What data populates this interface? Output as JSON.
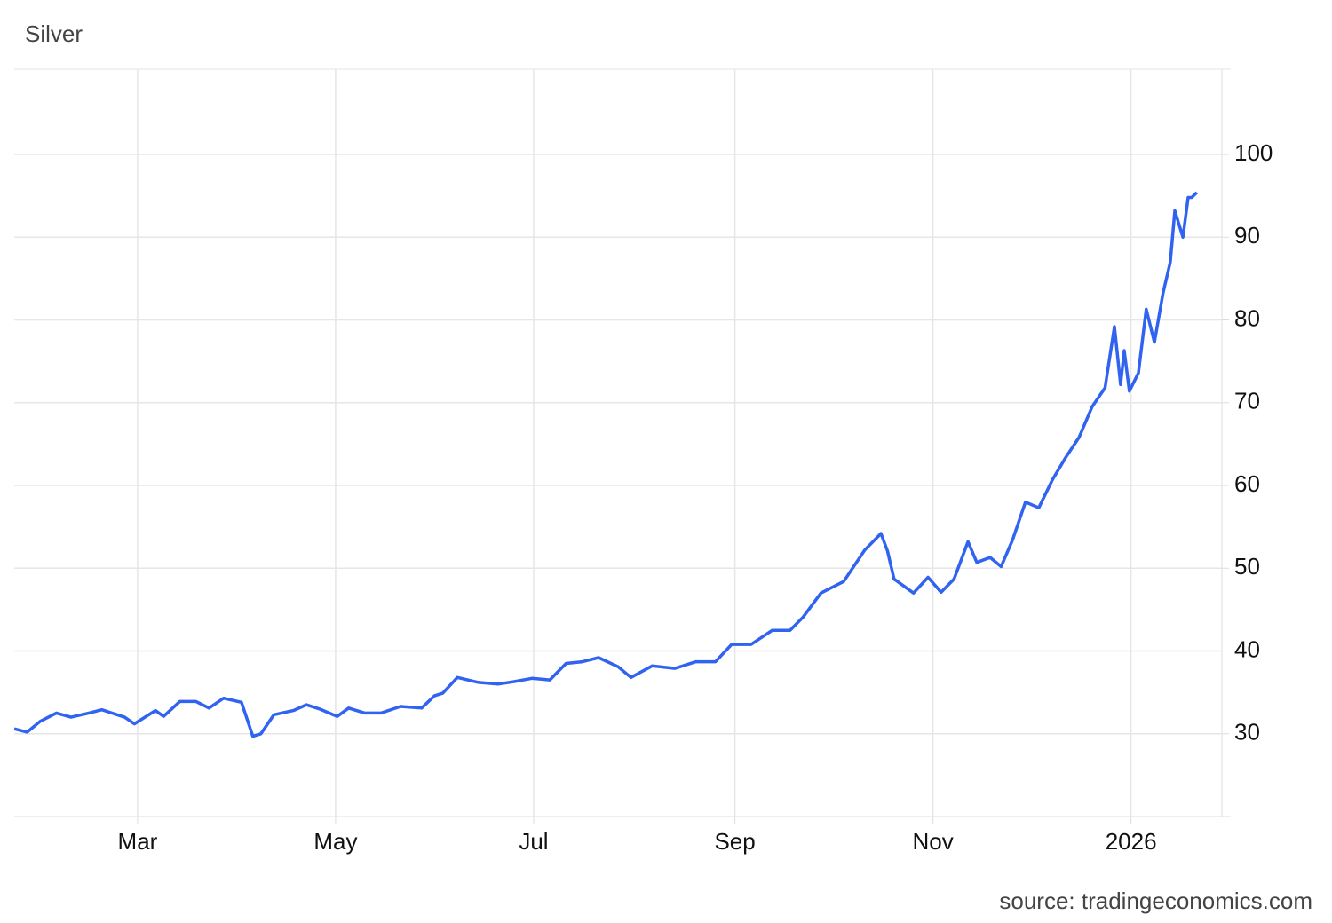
{
  "chart_data": {
    "type": "line",
    "title": "Silver",
    "source": "source: tradingeconomics.com",
    "x": [
      -38,
      -34,
      -30,
      -25,
      -20.5,
      -15,
      -11,
      -4,
      -1,
      5.5,
      8,
      13,
      18,
      22,
      26.5,
      32,
      35.5,
      38,
      42,
      48,
      52,
      56,
      61.5,
      65,
      70,
      75,
      81,
      87.5,
      91.5,
      94,
      98.5,
      105,
      111,
      116,
      121.5,
      127,
      132,
      137,
      142,
      148,
      152,
      158.5,
      165.5,
      172,
      178,
      183,
      189,
      195.5,
      201,
      205,
      210.5,
      217.5,
      224,
      229,
      231,
      233,
      239,
      243.5,
      247.5,
      251.5,
      255.8,
      258.5,
      262.6,
      266,
      269.5,
      273.5,
      277.6,
      281.8,
      285.9,
      290,
      294,
      298,
      300.9,
      302.8,
      303.9,
      305.5,
      308.3,
      310.7,
      313.2,
      315.9,
      318.1,
      319.5,
      322,
      323.6,
      324.7,
      326.3
    ],
    "series": [
      {
        "name": "Silver",
        "color": "#2f63f0",
        "values": [
          30.6,
          30.2,
          31.5,
          32.5,
          32,
          32.5,
          32.9,
          32,
          31.2,
          32.8,
          32.1,
          33.9,
          33.9,
          33.1,
          34.3,
          33.8,
          29.7,
          30,
          32.3,
          32.8,
          33.5,
          33,
          32.1,
          33.1,
          32.5,
          32.5,
          33.3,
          33.1,
          34.6,
          34.9,
          36.8,
          36.2,
          36,
          36.3,
          36.7,
          36.5,
          38.5,
          38.7,
          39.2,
          38.1,
          36.8,
          38.2,
          37.9,
          38.7,
          38.7,
          40.8,
          40.8,
          42.5,
          42.5,
          44.1,
          47,
          48.4,
          52.2,
          54.2,
          52.1,
          48.7,
          47,
          48.9,
          47.1,
          48.7,
          53.2,
          50.7,
          51.3,
          50.2,
          53.4,
          58,
          57.3,
          60.7,
          63.4,
          65.8,
          69.5,
          71.8,
          79.2,
          72.2,
          76.3,
          71.4,
          73.6,
          81.3,
          77.3,
          83.3,
          87,
          93.2,
          90,
          94.8,
          94.8,
          95.4
        ]
      }
    ],
    "xlim": [
      -38,
      334
    ],
    "xticks": [
      {
        "value": 0,
        "label": "Mar"
      },
      {
        "value": 61,
        "label": "May"
      },
      {
        "value": 122,
        "label": "Jul"
      },
      {
        "value": 184,
        "label": "Sep"
      },
      {
        "value": 245,
        "label": "Nov"
      },
      {
        "value": 306,
        "label": "2026"
      }
    ],
    "ylim": [
      20,
      110.3
    ],
    "yticks": [
      30,
      40,
      50,
      60,
      70,
      80,
      90,
      100
    ],
    "grid": true
  }
}
